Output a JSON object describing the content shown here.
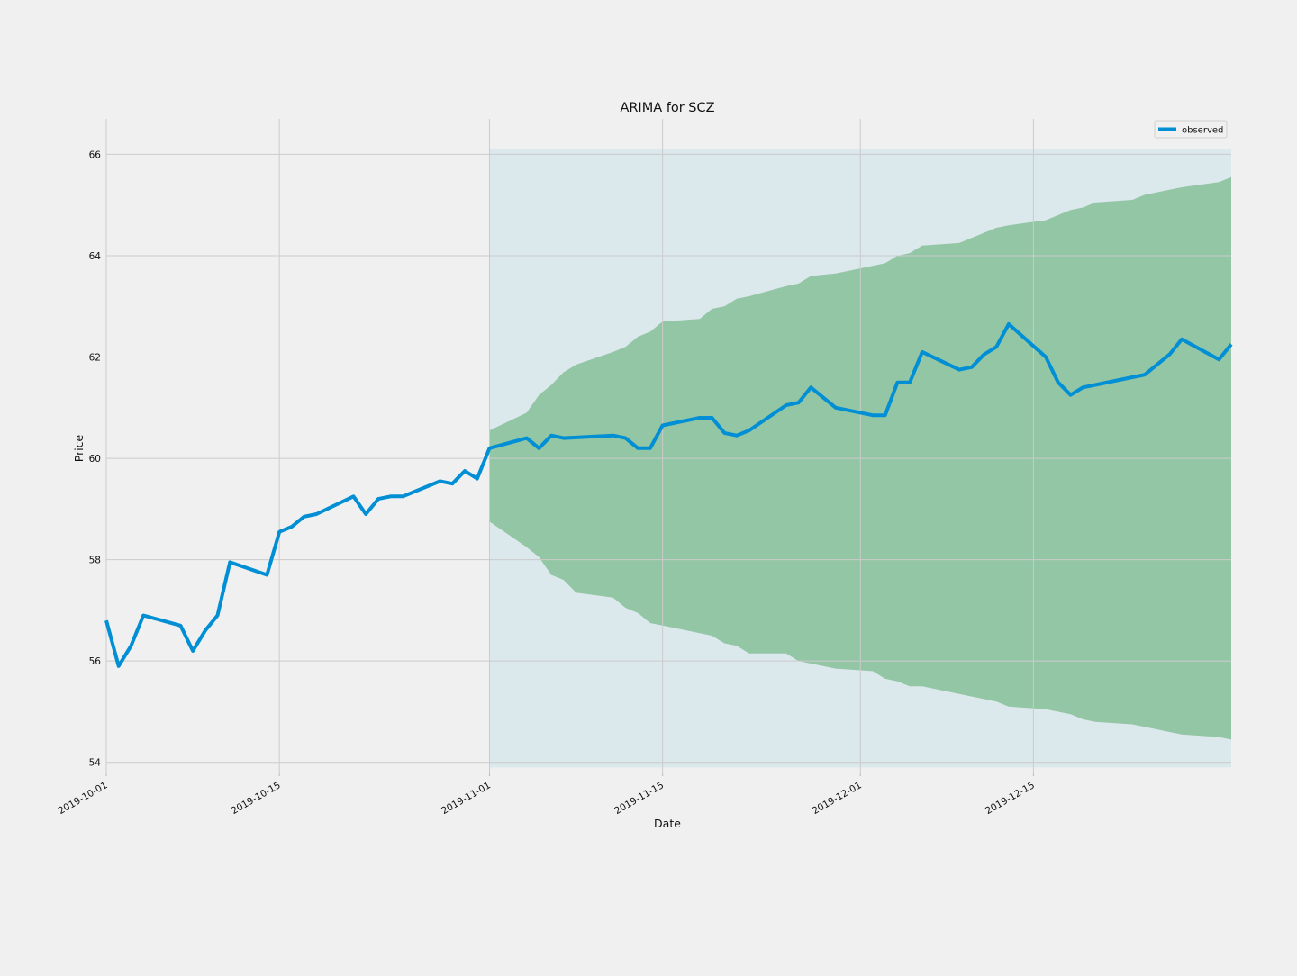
{
  "chart_data": {
    "type": "line",
    "title": "ARIMA for SCZ",
    "xlabel": "Date",
    "ylabel": "Price",
    "xlim": [
      "2019-10-01",
      "2019-12-31"
    ],
    "ylim": [
      53.8,
      66.7
    ],
    "x_ticks": [
      "2019-10-01",
      "2019-10-15",
      "2019-11-01",
      "2019-11-15",
      "2019-12-01",
      "2019-12-15"
    ],
    "y_ticks": [
      54,
      56,
      58,
      60,
      62,
      64,
      66
    ],
    "grid": true,
    "legend": {
      "placement": "top-right",
      "entries": [
        "observed"
      ]
    },
    "colors": {
      "observed": "#008fd5",
      "confidence_band": "#6db37f",
      "forecast_region": "#add8e6",
      "grid": "#cbcbcb",
      "background": "#f0f0f0"
    },
    "series": [
      {
        "name": "observed",
        "points": [
          [
            "2019-10-01",
            56.8
          ],
          [
            "2019-10-02",
            55.9
          ],
          [
            "2019-10-03",
            56.3
          ],
          [
            "2019-10-04",
            56.9
          ],
          [
            "2019-10-07",
            56.7
          ],
          [
            "2019-10-08",
            56.2
          ],
          [
            "2019-10-09",
            56.6
          ],
          [
            "2019-10-10",
            56.9
          ],
          [
            "2019-10-11",
            57.95
          ],
          [
            "2019-10-14",
            57.7
          ],
          [
            "2019-10-15",
            58.55
          ],
          [
            "2019-10-16",
            58.65
          ],
          [
            "2019-10-17",
            58.85
          ],
          [
            "2019-10-18",
            58.9
          ],
          [
            "2019-10-21",
            59.25
          ],
          [
            "2019-10-22",
            58.9
          ],
          [
            "2019-10-23",
            59.2
          ],
          [
            "2019-10-24",
            59.25
          ],
          [
            "2019-10-25",
            59.25
          ],
          [
            "2019-10-28",
            59.55
          ],
          [
            "2019-10-29",
            59.5
          ],
          [
            "2019-10-30",
            59.75
          ],
          [
            "2019-10-31",
            59.6
          ],
          [
            "2019-11-01",
            60.2
          ],
          [
            "2019-11-04",
            60.4
          ],
          [
            "2019-11-05",
            60.2
          ],
          [
            "2019-11-06",
            60.45
          ],
          [
            "2019-11-07",
            60.4
          ],
          [
            "2019-11-11",
            60.45
          ],
          [
            "2019-11-12",
            60.4
          ],
          [
            "2019-11-13",
            60.2
          ],
          [
            "2019-11-14",
            60.2
          ],
          [
            "2019-11-15",
            60.65
          ],
          [
            "2019-11-18",
            60.8
          ],
          [
            "2019-11-19",
            60.8
          ],
          [
            "2019-11-20",
            60.5
          ],
          [
            "2019-11-21",
            60.45
          ],
          [
            "2019-11-22",
            60.55
          ],
          [
            "2019-11-25",
            61.05
          ],
          [
            "2019-11-26",
            61.1
          ],
          [
            "2019-11-27",
            61.4
          ],
          [
            "2019-11-29",
            61.0
          ],
          [
            "2019-12-02",
            60.85
          ],
          [
            "2019-12-03",
            60.85
          ],
          [
            "2019-12-04",
            61.5
          ],
          [
            "2019-12-05",
            61.5
          ],
          [
            "2019-12-06",
            62.1
          ],
          [
            "2019-12-09",
            61.75
          ],
          [
            "2019-12-10",
            61.8
          ],
          [
            "2019-12-11",
            62.05
          ],
          [
            "2019-12-12",
            62.2
          ],
          [
            "2019-12-13",
            62.65
          ],
          [
            "2019-12-16",
            62.0
          ],
          [
            "2019-12-17",
            61.5
          ],
          [
            "2019-12-18",
            61.25
          ],
          [
            "2019-12-19",
            61.4
          ],
          [
            "2019-12-20",
            61.45
          ],
          [
            "2019-12-23",
            61.6
          ],
          [
            "2019-12-24",
            61.65
          ],
          [
            "2019-12-26",
            62.05
          ],
          [
            "2019-12-27",
            62.35
          ],
          [
            "2019-12-30",
            61.95
          ],
          [
            "2019-12-31",
            62.25
          ]
        ]
      }
    ],
    "forecast_region": {
      "x": [
        "2019-11-01",
        "2019-12-31"
      ],
      "y": [
        53.9,
        66.1
      ]
    },
    "confidence_interval": {
      "dates": [
        "2019-11-01",
        "2019-11-04",
        "2019-11-05",
        "2019-11-06",
        "2019-11-07",
        "2019-11-08",
        "2019-11-11",
        "2019-11-12",
        "2019-11-13",
        "2019-11-14",
        "2019-11-15",
        "2019-11-18",
        "2019-11-19",
        "2019-11-20",
        "2019-11-21",
        "2019-11-22",
        "2019-11-25",
        "2019-11-26",
        "2019-11-27",
        "2019-11-29",
        "2019-12-02",
        "2019-12-03",
        "2019-12-04",
        "2019-12-05",
        "2019-12-06",
        "2019-12-09",
        "2019-12-10",
        "2019-12-11",
        "2019-12-12",
        "2019-12-13",
        "2019-12-16",
        "2019-12-17",
        "2019-12-18",
        "2019-12-19",
        "2019-12-20",
        "2019-12-23",
        "2019-12-24",
        "2019-12-26",
        "2019-12-27",
        "2019-12-30",
        "2019-12-31"
      ],
      "upper": [
        60.55,
        60.9,
        61.25,
        61.45,
        61.7,
        61.85,
        62.1,
        62.2,
        62.4,
        62.5,
        62.7,
        62.75,
        62.95,
        63.0,
        63.15,
        63.2,
        63.4,
        63.45,
        63.6,
        63.65,
        63.8,
        63.85,
        64.0,
        64.05,
        64.2,
        64.25,
        64.35,
        64.45,
        64.55,
        64.6,
        64.7,
        64.8,
        64.9,
        64.95,
        65.05,
        65.1,
        65.2,
        65.3,
        65.35,
        65.45,
        65.55
      ],
      "lower": [
        58.75,
        58.25,
        58.05,
        57.7,
        57.6,
        57.35,
        57.25,
        57.05,
        56.95,
        56.75,
        56.7,
        56.55,
        56.5,
        56.35,
        56.3,
        56.15,
        56.15,
        56.0,
        55.95,
        55.85,
        55.8,
        55.65,
        55.6,
        55.5,
        55.5,
        55.35,
        55.3,
        55.25,
        55.2,
        55.1,
        55.05,
        55.0,
        54.95,
        54.85,
        54.8,
        54.75,
        54.7,
        54.6,
        54.55,
        54.5,
        54.45
      ]
    }
  }
}
